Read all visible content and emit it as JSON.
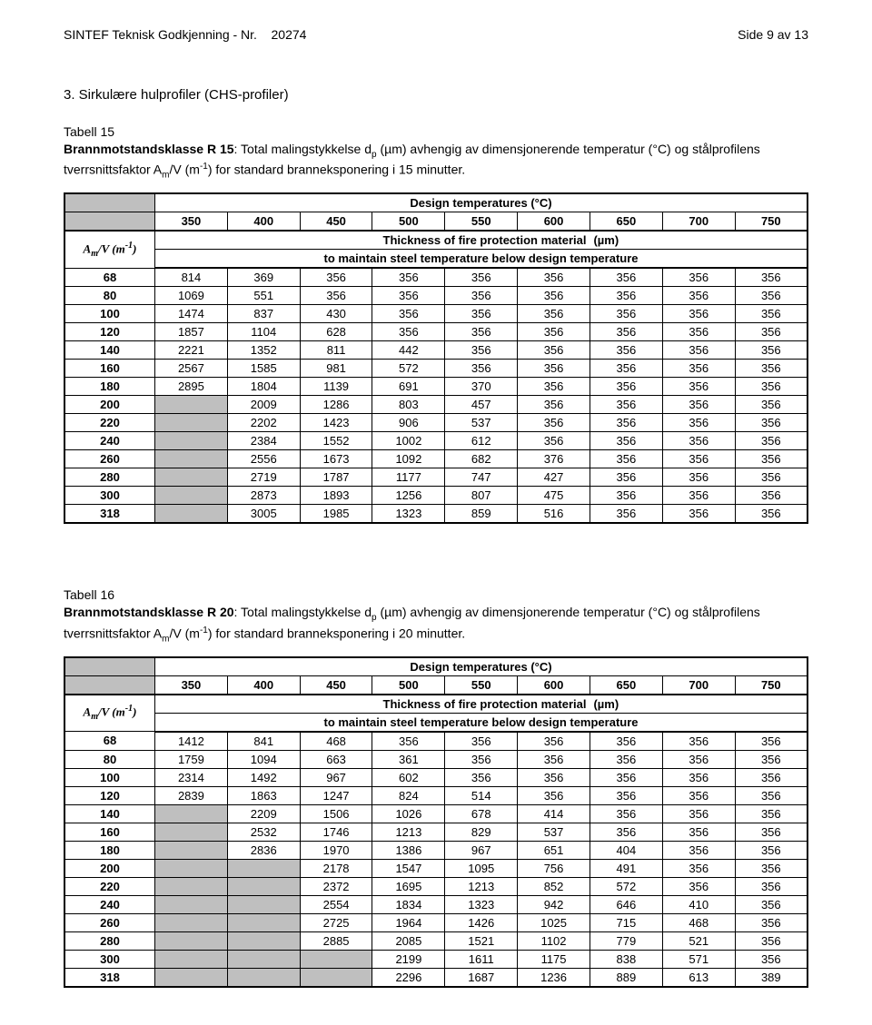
{
  "header": {
    "left": "SINTEF Teknisk Godkjenning - Nr.    20274",
    "right": "Side 9 av 13"
  },
  "section_title": "3. Sirkulære hulprofiler (CHS-profiler)",
  "table15": {
    "label": "Tabell 15",
    "desc_pre": "Brannmotstandsklasse R 15",
    "desc_rest": ": Total malingstykkelse d",
    "desc_sub": "p",
    "desc_mid": " (µm) avhengig av dimensjonerende temperatur (°C) og stålprofilens tverrsnittsfaktor A",
    "desc_sub2": "m",
    "desc_tail1": "/V (m",
    "desc_sup": "-1",
    "desc_tail2": ") for standard branneksponering i 15 minutter.",
    "header_title": "Design temperatures (°C)",
    "temps": [
      "350",
      "400",
      "450",
      "500",
      "550",
      "600",
      "650",
      "700",
      "750"
    ],
    "sub_left": "Thickness of fire protection material",
    "sub_right": "(µm)",
    "sub_row2": "to maintain steel temperature below design temperature",
    "amv_label_a": "A",
    "amv_label_m": "m",
    "amv_label_b": "/V (m",
    "amv_label_s": "-1",
    "amv_label_c": ")",
    "rows": [
      {
        "k": "68",
        "v": [
          "814",
          "369",
          "356",
          "356",
          "356",
          "356",
          "356",
          "356",
          "356"
        ]
      },
      {
        "k": "80",
        "v": [
          "1069",
          "551",
          "356",
          "356",
          "356",
          "356",
          "356",
          "356",
          "356"
        ]
      },
      {
        "k": "100",
        "v": [
          "1474",
          "837",
          "430",
          "356",
          "356",
          "356",
          "356",
          "356",
          "356"
        ]
      },
      {
        "k": "120",
        "v": [
          "1857",
          "1104",
          "628",
          "356",
          "356",
          "356",
          "356",
          "356",
          "356"
        ]
      },
      {
        "k": "140",
        "v": [
          "2221",
          "1352",
          "811",
          "442",
          "356",
          "356",
          "356",
          "356",
          "356"
        ]
      },
      {
        "k": "160",
        "v": [
          "2567",
          "1585",
          "981",
          "572",
          "356",
          "356",
          "356",
          "356",
          "356"
        ]
      },
      {
        "k": "180",
        "v": [
          "2895",
          "1804",
          "1139",
          "691",
          "370",
          "356",
          "356",
          "356",
          "356"
        ]
      },
      {
        "k": "200",
        "v": [
          "",
          "2009",
          "1286",
          "803",
          "457",
          "356",
          "356",
          "356",
          "356"
        ]
      },
      {
        "k": "220",
        "v": [
          "",
          "2202",
          "1423",
          "906",
          "537",
          "356",
          "356",
          "356",
          "356"
        ]
      },
      {
        "k": "240",
        "v": [
          "",
          "2384",
          "1552",
          "1002",
          "612",
          "356",
          "356",
          "356",
          "356"
        ]
      },
      {
        "k": "260",
        "v": [
          "",
          "2556",
          "1673",
          "1092",
          "682",
          "376",
          "356",
          "356",
          "356"
        ]
      },
      {
        "k": "280",
        "v": [
          "",
          "2719",
          "1787",
          "1177",
          "747",
          "427",
          "356",
          "356",
          "356"
        ]
      },
      {
        "k": "300",
        "v": [
          "",
          "2873",
          "1893",
          "1256",
          "807",
          "475",
          "356",
          "356",
          "356"
        ]
      },
      {
        "k": "318",
        "v": [
          "",
          "3005",
          "1985",
          "1323",
          "859",
          "516",
          "356",
          "356",
          "356"
        ]
      }
    ]
  },
  "table16": {
    "label": "Tabell 16",
    "desc_pre": "Brannmotstandsklasse R 20",
    "desc_rest": ": Total malingstykkelse d",
    "desc_mid": " (µm) avhengig av dimensjonerende temperatur (°C) og stålprofilens tverrsnittsfaktor A",
    "desc_tail1": "/V (m",
    "desc_tail2": ") for standard branneksponering i 20 minutter.",
    "rows": [
      {
        "k": "68",
        "v": [
          "1412",
          "841",
          "468",
          "356",
          "356",
          "356",
          "356",
          "356",
          "356"
        ]
      },
      {
        "k": "80",
        "v": [
          "1759",
          "1094",
          "663",
          "361",
          "356",
          "356",
          "356",
          "356",
          "356"
        ]
      },
      {
        "k": "100",
        "v": [
          "2314",
          "1492",
          "967",
          "602",
          "356",
          "356",
          "356",
          "356",
          "356"
        ]
      },
      {
        "k": "120",
        "v": [
          "2839",
          "1863",
          "1247",
          "824",
          "514",
          "356",
          "356",
          "356",
          "356"
        ]
      },
      {
        "k": "140",
        "v": [
          "",
          "2209",
          "1506",
          "1026",
          "678",
          "414",
          "356",
          "356",
          "356"
        ]
      },
      {
        "k": "160",
        "v": [
          "",
          "2532",
          "1746",
          "1213",
          "829",
          "537",
          "356",
          "356",
          "356"
        ]
      },
      {
        "k": "180",
        "v": [
          "",
          "2836",
          "1970",
          "1386",
          "967",
          "651",
          "404",
          "356",
          "356"
        ]
      },
      {
        "k": "200",
        "v": [
          "",
          "",
          "2178",
          "1547",
          "1095",
          "756",
          "491",
          "356",
          "356"
        ]
      },
      {
        "k": "220",
        "v": [
          "",
          "",
          "2372",
          "1695",
          "1213",
          "852",
          "572",
          "356",
          "356"
        ]
      },
      {
        "k": "240",
        "v": [
          "",
          "",
          "2554",
          "1834",
          "1323",
          "942",
          "646",
          "410",
          "356"
        ]
      },
      {
        "k": "260",
        "v": [
          "",
          "",
          "2725",
          "1964",
          "1426",
          "1025",
          "715",
          "468",
          "356"
        ]
      },
      {
        "k": "280",
        "v": [
          "",
          "",
          "2885",
          "2085",
          "1521",
          "1102",
          "779",
          "521",
          "356"
        ]
      },
      {
        "k": "300",
        "v": [
          "",
          "",
          "",
          "2199",
          "1611",
          "1175",
          "838",
          "571",
          "356"
        ]
      },
      {
        "k": "318",
        "v": [
          "",
          "",
          "",
          "2296",
          "1687",
          "1236",
          "889",
          "613",
          "389"
        ]
      }
    ]
  }
}
